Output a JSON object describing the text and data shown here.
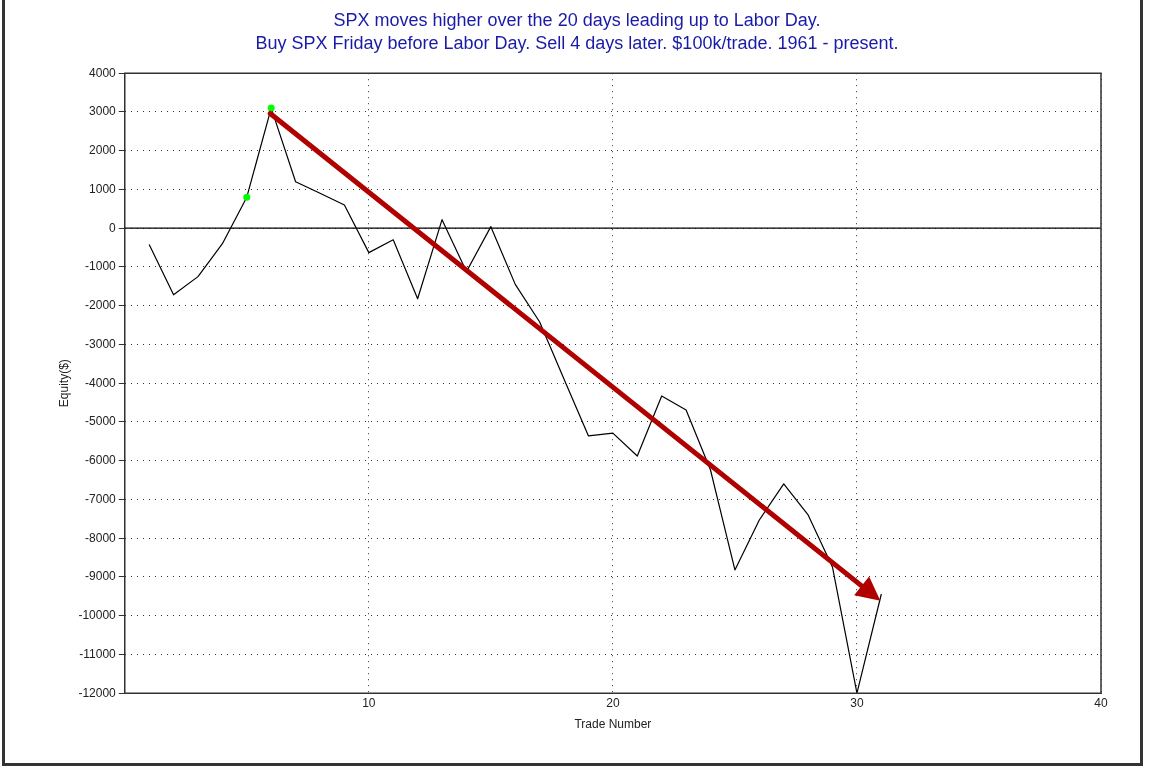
{
  "chart_data": {
    "type": "line",
    "title": "SPX moves higher over the 20 days leading up to Labor Day.",
    "subtitle": "Buy SPX Friday before Labor Day. Sell 4 days later. $100k/trade. 1961 - present.",
    "xlabel": "Trade Number",
    "ylabel": "Equity($)",
    "x": [
      1,
      2,
      3,
      4,
      5,
      6,
      7,
      8,
      9,
      10,
      11,
      12,
      13,
      14,
      15,
      16,
      17,
      18,
      19,
      20,
      21,
      22,
      23,
      24,
      25,
      26,
      27,
      28,
      29,
      30,
      31
    ],
    "series": [
      {
        "color": "#000000",
        "marker": "none",
        "values": [
          -420,
          -1720,
          -1250,
          -400,
          800,
          3100,
          1200,
          900,
          600,
          -630,
          -300,
          -1820,
          220,
          -1120,
          40,
          -1450,
          -2420,
          -3900,
          -5360,
          -5290,
          -5880,
          -4330,
          -4690,
          -6240,
          -8820,
          -7530,
          -6600,
          -7400,
          -8750,
          -12000,
          -9440
        ]
      },
      {
        "type": "scatter",
        "color": "#00ff00",
        "marker": "circle",
        "x": [
          5,
          6
        ],
        "values": [
          800,
          3100
        ]
      }
    ],
    "xlim": [
      0,
      40
    ],
    "xticks": [
      10,
      20,
      30,
      40
    ],
    "ylim": [
      -12000,
      4000
    ],
    "yticks": [
      -12000,
      -11000,
      -10000,
      -9000,
      -8000,
      -7000,
      -6000,
      -5000,
      -4000,
      -3000,
      -2000,
      -1000,
      0,
      1000,
      2000,
      3000,
      4000
    ],
    "grid": true,
    "line_style": "solid",
    "ref_lines": [
      {
        "axis": "y",
        "value": 0,
        "color": "#000000"
      }
    ]
  }
}
